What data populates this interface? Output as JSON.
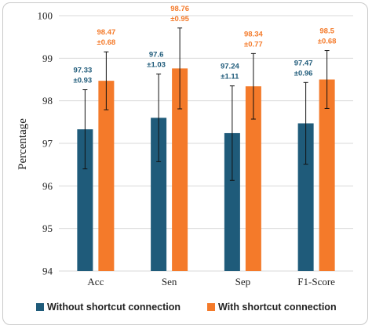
{
  "chart_data": {
    "type": "bar",
    "categories": [
      "Acc",
      "Sen",
      "Sep",
      "F1-Score"
    ],
    "ylabel": "Percentage",
    "xlabel": "",
    "ylim": [
      94,
      100
    ],
    "yticks": [
      94,
      95,
      96,
      97,
      98,
      99,
      100
    ],
    "grid": true,
    "legend_position": "bottom",
    "series": [
      {
        "name": "Without shortcut connection",
        "color": "#1f5b7a",
        "values": [
          97.33,
          97.6,
          97.24,
          97.47
        ],
        "errors": [
          0.93,
          1.03,
          1.11,
          0.96
        ],
        "labels": [
          "97.33",
          "97.6",
          "97.24",
          "97.47"
        ],
        "error_labels": [
          "±0.93",
          "±1.03",
          "±1.11",
          "±0.96"
        ]
      },
      {
        "name": "With shortcut connection",
        "color": "#f47a2a",
        "values": [
          98.47,
          98.76,
          98.34,
          98.5
        ],
        "errors": [
          0.68,
          0.95,
          0.77,
          0.68
        ],
        "labels": [
          "98.47",
          "98.76",
          "98.34",
          "98.5"
        ],
        "error_labels": [
          "±0.68",
          "±0.95",
          "±0.77",
          "±0.68"
        ]
      }
    ]
  }
}
